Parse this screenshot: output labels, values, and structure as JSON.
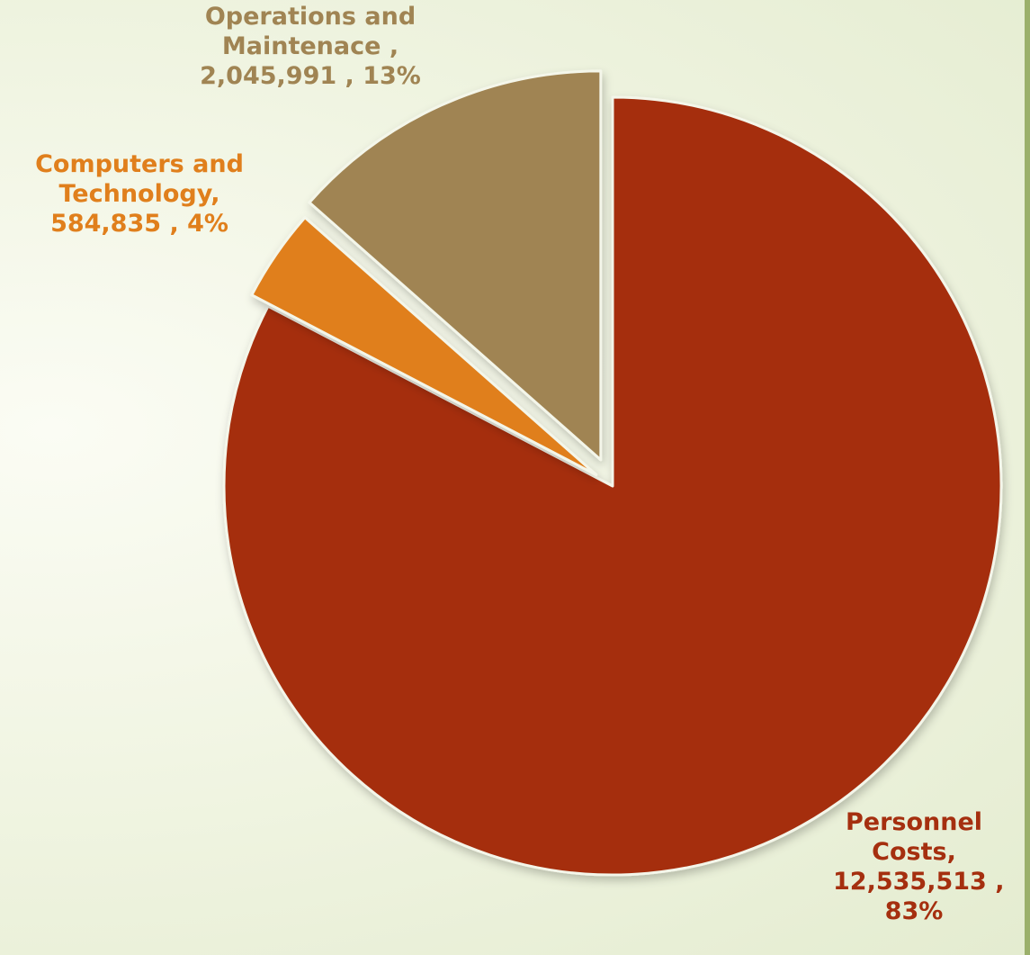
{
  "chart_data": {
    "type": "pie",
    "start_angle_deg": 0,
    "direction": "clockwise",
    "slices": [
      {
        "category": "Personnel Costs",
        "value": 12535513,
        "percent": 83,
        "color": "#a52f0f",
        "label_lines": [
          "Personnel",
          "Costs,",
          "12,535,513 ,",
          "83%"
        ]
      },
      {
        "category": "Computers and Technology",
        "value": 584835,
        "percent": 4,
        "color": "#e07f1c",
        "label_lines": [
          "Computers and",
          "Technology,",
          "584,835 , 4%"
        ]
      },
      {
        "category": "Operations and Maintenace",
        "value": 2045991,
        "percent": 13,
        "color": "#a08453",
        "label_lines": [
          "Operations and",
          "Maintenace ,",
          "2,045,991 , 13%"
        ]
      }
    ],
    "legend": "none"
  }
}
